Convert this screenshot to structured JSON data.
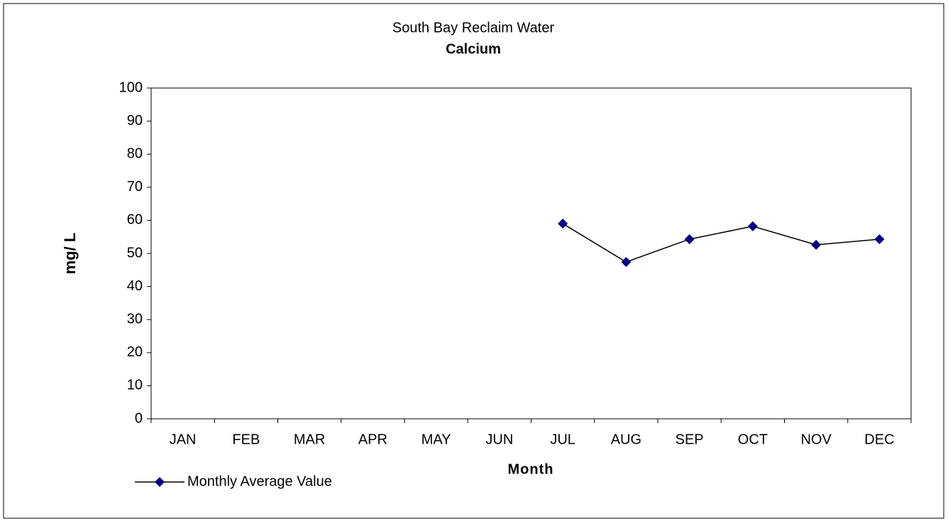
{
  "chart_data": {
    "type": "line",
    "title": "South Bay Reclaim Water",
    "subtitle": "Calcium",
    "y_label": "mg/ L",
    "x_label": "Month",
    "categories": [
      "JAN",
      "FEB",
      "MAR",
      "APR",
      "MAY",
      "JUN",
      "JUL",
      "AUG",
      "SEP",
      "OCT",
      "NOV",
      "DEC"
    ],
    "series": [
      {
        "name": "Monthly Average Value",
        "color": "#000080",
        "values": [
          null,
          null,
          null,
          null,
          null,
          null,
          59.0,
          47.4,
          54.3,
          58.2,
          52.6,
          54.3
        ]
      }
    ],
    "ylim": [
      0,
      100
    ],
    "yticks": [
      0,
      10,
      20,
      30,
      40,
      50,
      60,
      70,
      80,
      90,
      100
    ],
    "grid": false,
    "legend": "bottom-left"
  }
}
